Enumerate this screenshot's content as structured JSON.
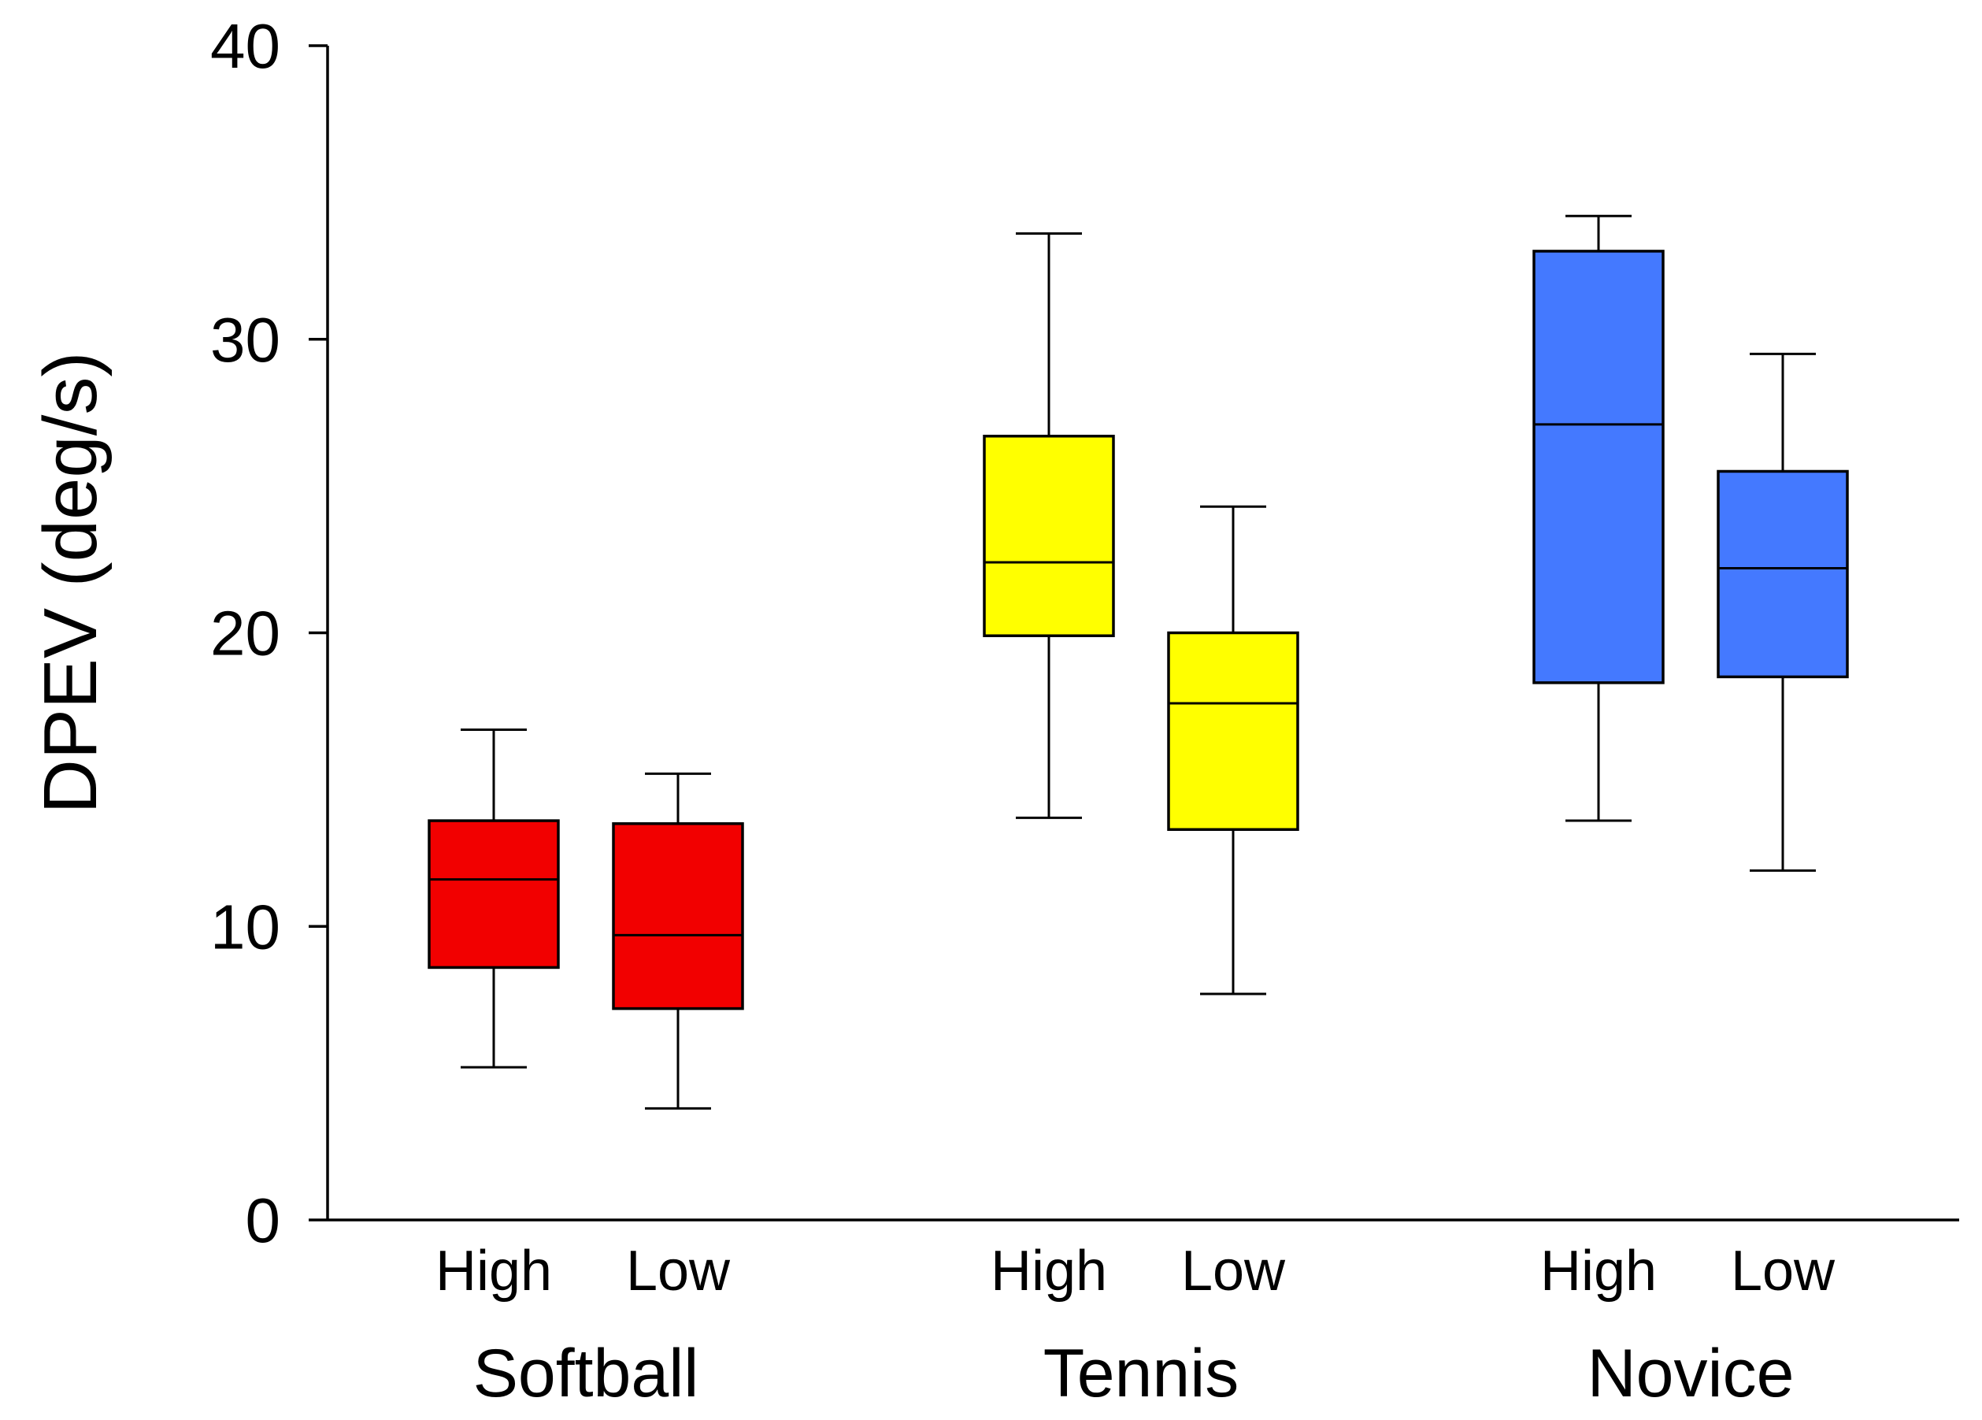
{
  "chart_data": {
    "type": "box",
    "title": "",
    "xlabel": "",
    "ylabel": "DPEV (deg/s)",
    "ylim": [
      0,
      40
    ],
    "yticks": [
      0,
      10,
      20,
      30,
      40
    ],
    "yticklabels": [
      "0",
      "10",
      "20",
      "30",
      "40"
    ],
    "grid": false,
    "groups": [
      {
        "name": "Softball",
        "color": "#f20000",
        "boxes": [
          {
            "label": "High",
            "whisker_low": 5.2,
            "q1": 8.6,
            "median": 11.6,
            "q3": 13.6,
            "whisker_high": 16.7
          },
          {
            "label": "Low",
            "whisker_low": 3.8,
            "q1": 7.2,
            "median": 9.7,
            "q3": 13.5,
            "whisker_high": 15.2
          }
        ]
      },
      {
        "name": "Tennis",
        "color": "#ffff00",
        "boxes": [
          {
            "label": "High",
            "whisker_low": 13.7,
            "q1": 19.9,
            "median": 22.4,
            "q3": 26.7,
            "whisker_high": 33.6
          },
          {
            "label": "Low",
            "whisker_low": 7.7,
            "q1": 13.3,
            "median": 17.6,
            "q3": 20.0,
            "whisker_high": 24.3
          }
        ]
      },
      {
        "name": "Novice",
        "color": "#4479ff",
        "boxes": [
          {
            "label": "High",
            "whisker_low": 13.6,
            "q1": 18.3,
            "median": 27.1,
            "q3": 33.0,
            "whisker_high": 34.2
          },
          {
            "label": "Low",
            "whisker_low": 11.9,
            "q1": 18.5,
            "median": 22.2,
            "q3": 25.5,
            "whisker_high": 29.5
          }
        ]
      }
    ]
  }
}
